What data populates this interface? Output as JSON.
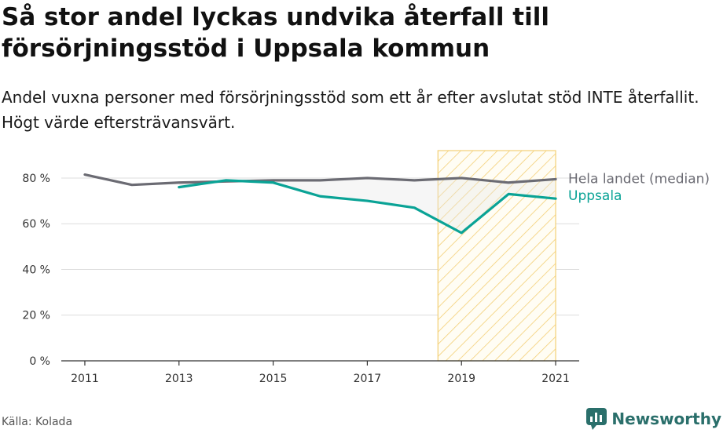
{
  "title": "Så stor andel lyckas undvika återfall till försörjningsstöd i Uppsala kommun",
  "subtitle": "Andel vuxna personer med försörjningsstöd som ett år efter avslutat stöd INTE återfallit. Högt värde eftersträvansvärt.",
  "source": "Källa: Kolada",
  "brand": "Newsworthy",
  "chart_data": {
    "type": "line",
    "x": [
      2011,
      2012,
      2013,
      2014,
      2015,
      2016,
      2017,
      2018,
      2019,
      2020,
      2021
    ],
    "x_ticks": [
      "2011",
      "2013",
      "2015",
      "2017",
      "2019",
      "2021"
    ],
    "y_ticks": [
      "0 %",
      "20 %",
      "40 %",
      "60 %",
      "80 %"
    ],
    "ylim": [
      0,
      92
    ],
    "series": [
      {
        "name": "Hela landet (median)",
        "color": "#6b6b73",
        "values": [
          81.5,
          77,
          78,
          78.5,
          79,
          79,
          80,
          79,
          80,
          78,
          79.5
        ]
      },
      {
        "name": "Uppsala",
        "color": "#0aa396",
        "values": [
          null,
          null,
          76,
          79,
          78,
          72,
          70,
          67,
          56,
          73,
          71
        ]
      }
    ],
    "highlight_range": [
      2018.5,
      2021
    ],
    "grid": true
  }
}
